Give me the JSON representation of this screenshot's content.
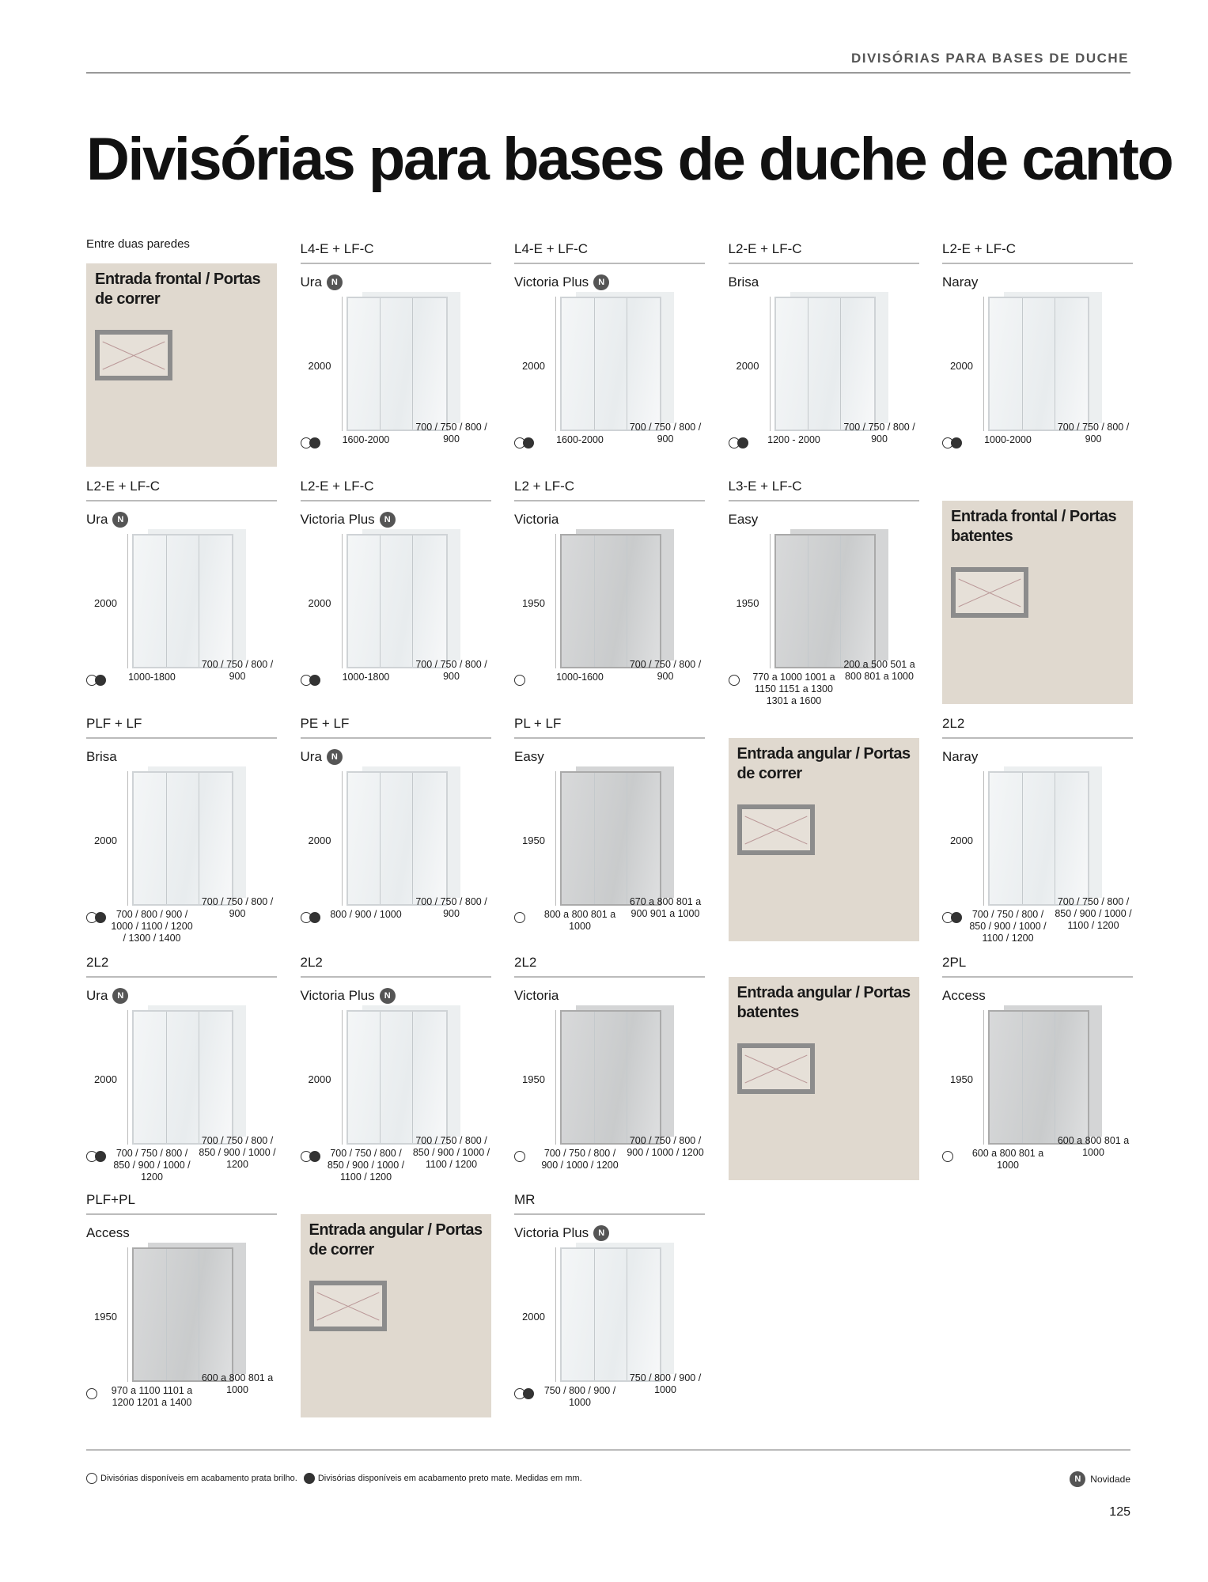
{
  "header": {
    "section": "DIVISÓRIAS PARA BASES DE DUCHE",
    "title": "Divisórias para bases de duche de canto"
  },
  "group_label": "Entre duas paredes",
  "badge_letter": "N",
  "categories": [
    {
      "row": 0,
      "col": 0,
      "title": "Entrada frontal / Portas de correr"
    },
    {
      "row": 1,
      "col": 4,
      "title": "Entrada frontal / Portas batentes"
    },
    {
      "row": 2,
      "col": 3,
      "title": "Entrada angular / Portas de correr"
    },
    {
      "row": 3,
      "col": 3,
      "title": "Entrada angular / Portas batentes"
    },
    {
      "row": 4,
      "col": 1,
      "title": "Entrada angular / Portas de correr"
    }
  ],
  "products": [
    {
      "row": 0,
      "col": 1,
      "series": "L4-E + LF-C",
      "name": "Ura",
      "new": true,
      "height": "2000",
      "width": "1600-2000",
      "depth": "700 / 750 / 800 / 900",
      "finishes": [
        "silver",
        "black"
      ]
    },
    {
      "row": 0,
      "col": 2,
      "series": "L4-E + LF-C",
      "name": "Victoria Plus",
      "new": true,
      "height": "2000",
      "width": "1600-2000",
      "depth": "700 / 750 / 800 / 900",
      "finishes": [
        "silver",
        "black"
      ]
    },
    {
      "row": 0,
      "col": 3,
      "series": "L2-E + LF-C",
      "name": "Brisa",
      "new": false,
      "height": "2000",
      "width": "1200 - 2000",
      "depth": "700 / 750 / 800 / 900",
      "finishes": [
        "silver",
        "black"
      ]
    },
    {
      "row": 0,
      "col": 4,
      "series": "L2-E + LF-C",
      "name": "Naray",
      "new": false,
      "height": "2000",
      "width": "1000-2000",
      "depth": "700 / 750 / 800 / 900",
      "finishes": [
        "silver",
        "black"
      ]
    },
    {
      "row": 1,
      "col": 0,
      "series": "L2-E + LF-C",
      "name": "Ura",
      "new": true,
      "height": "2000",
      "width": "1000-1800",
      "depth": "700 / 750 / 800 / 900",
      "finishes": [
        "silver",
        "black"
      ]
    },
    {
      "row": 1,
      "col": 1,
      "series": "L2-E + LF-C",
      "name": "Victoria Plus",
      "new": true,
      "height": "2000",
      "width": "1000-1800",
      "depth": "700 / 750 / 800 / 900",
      "finishes": [
        "silver",
        "black"
      ]
    },
    {
      "row": 1,
      "col": 2,
      "series": "L2 + LF-C",
      "name": "Victoria",
      "new": false,
      "height": "1950",
      "width": "1000-1600",
      "depth": "700 / 750 / 800 / 900",
      "finishes": [
        "silver"
      ],
      "dark": true
    },
    {
      "row": 1,
      "col": 3,
      "series": "L3-E + LF-C",
      "name": "Easy",
      "new": false,
      "height": "1950",
      "width": "770 a 1000 1001 a 1150 1151 a 1300 1301 a 1600",
      "depth": "200 a 500 501 a 800 801 a 1000",
      "finishes": [
        "silver"
      ],
      "dark": true
    },
    {
      "row": 2,
      "col": 0,
      "series": "PLF + LF",
      "name": "Brisa",
      "new": false,
      "height": "2000",
      "width": "700 / 800 / 900 / 1000 / 1100 / 1200 / 1300 / 1400",
      "depth": "700 / 750 / 800 / 900",
      "finishes": [
        "silver",
        "black"
      ]
    },
    {
      "row": 2,
      "col": 1,
      "series": "PE + LF",
      "name": "Ura",
      "new": true,
      "height": "2000",
      "width": "800 / 900 / 1000",
      "depth": "700 / 750 / 800 / 900",
      "finishes": [
        "silver",
        "black"
      ]
    },
    {
      "row": 2,
      "col": 2,
      "series": "PL + LF",
      "name": "Easy",
      "new": false,
      "height": "1950",
      "width": "800 a 800 801 a 1000",
      "depth": "670 a 800 801 a 900 901 a 1000",
      "finishes": [
        "silver"
      ],
      "dark": true
    },
    {
      "row": 2,
      "col": 4,
      "series": "2L2",
      "name": "Naray",
      "new": false,
      "height": "2000",
      "width": "700 / 750 / 800 / 850 / 900 / 1000 / 1100 / 1200",
      "depth": "700 / 750 / 800 / 850 / 900 / 1000 / 1100 / 1200",
      "finishes": [
        "silver",
        "black"
      ]
    },
    {
      "row": 3,
      "col": 0,
      "series": "2L2",
      "name": "Ura",
      "new": true,
      "height": "2000",
      "width": "700 / 750 / 800 / 850 / 900 / 1000 / 1200",
      "depth": "700 / 750 / 800 / 850 / 900 / 1000 / 1200",
      "finishes": [
        "silver",
        "black"
      ]
    },
    {
      "row": 3,
      "col": 1,
      "series": "2L2",
      "name": "Victoria Plus",
      "new": true,
      "height": "2000",
      "width": "700 / 750 / 800 / 850 / 900 / 1000 / 1100 / 1200",
      "depth": "700 / 750 / 800 / 850 / 900 / 1000 / 1100 / 1200",
      "finishes": [
        "silver",
        "black"
      ]
    },
    {
      "row": 3,
      "col": 2,
      "series": "2L2",
      "name": "Victoria",
      "new": false,
      "height": "1950",
      "width": "700 / 750 / 800 / 900 / 1000 / 1200",
      "depth": "700 / 750 / 800 / 900 / 1000 / 1200",
      "finishes": [
        "silver"
      ],
      "dark": true
    },
    {
      "row": 3,
      "col": 4,
      "series": "2PL",
      "name": "Access",
      "new": false,
      "height": "1950",
      "width": "600 a 800 801 a 1000",
      "depth": "600 a 800 801 a 1000",
      "finishes": [
        "silver"
      ],
      "dark": true
    },
    {
      "row": 4,
      "col": 0,
      "series": "PLF+PL",
      "name": "Access",
      "new": false,
      "height": "1950",
      "width": "970 a 1100 1101 a 1200 1201 a 1400",
      "depth": "600 a 800 801 a 1000",
      "finishes": [
        "silver"
      ],
      "dark": true
    },
    {
      "row": 4,
      "col": 2,
      "series": "MR",
      "name": "Victoria Plus",
      "new": true,
      "height": "2000",
      "width": "750 / 800 / 900 / 1000",
      "depth": "750 / 800 / 900 / 1000",
      "finishes": [
        "silver",
        "black"
      ]
    }
  ],
  "footer": {
    "legend_silver": "Divisórias disponíveis em acabamento prata brilho.",
    "legend_black": "Divisórias disponíveis em acabamento preto mate. Medidas em mm.",
    "new_label": "Novidade",
    "page_number": "125"
  }
}
